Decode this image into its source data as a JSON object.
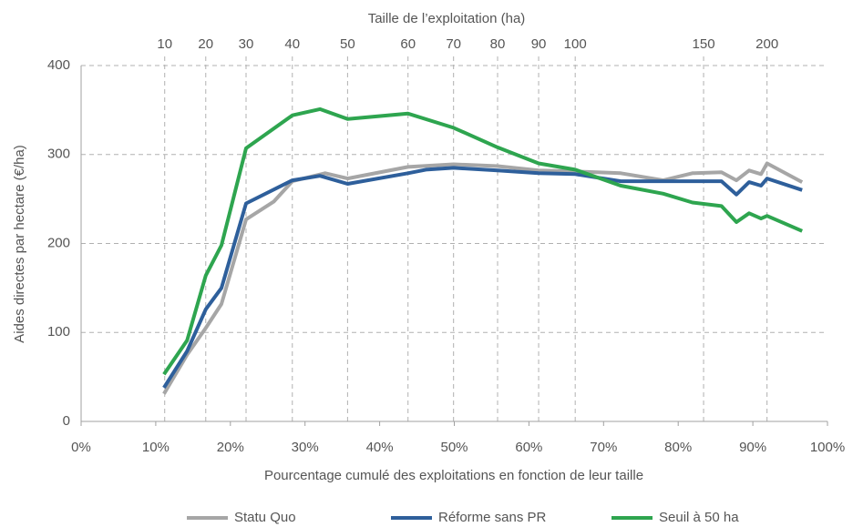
{
  "chart_data": {
    "type": "line",
    "xlabel": "Pourcentage cumulé des exploitations en fonction de leur taille",
    "ylabel": "Aides directes par hectare (€/ha)",
    "x2label": "Taille de l’exploitation (ha)",
    "xlim": [
      0,
      100
    ],
    "ylim": [
      0,
      400
    ],
    "xticks": [
      {
        "value": 0,
        "label": "0%"
      },
      {
        "value": 10,
        "label": "10%"
      },
      {
        "value": 20,
        "label": "20%"
      },
      {
        "value": 30,
        "label": "30%"
      },
      {
        "value": 40,
        "label": "40%"
      },
      {
        "value": 50,
        "label": "50%"
      },
      {
        "value": 60,
        "label": "60%"
      },
      {
        "value": 70,
        "label": "70%"
      },
      {
        "value": 80,
        "label": "80%"
      },
      {
        "value": 90,
        "label": "90%"
      },
      {
        "value": 100,
        "label": "100%"
      }
    ],
    "yticks": [
      0,
      100,
      200,
      300,
      400
    ],
    "x2ticks": [
      {
        "value": 11.2,
        "label": "10"
      },
      {
        "value": 16.7,
        "label": "20"
      },
      {
        "value": 22.1,
        "label": "30"
      },
      {
        "value": 28.3,
        "label": "40"
      },
      {
        "value": 35.7,
        "label": "50"
      },
      {
        "value": 43.8,
        "label": "60"
      },
      {
        "value": 49.9,
        "label": "70"
      },
      {
        "value": 55.8,
        "label": "80"
      },
      {
        "value": 61.3,
        "label": "90"
      },
      {
        "value": 66.2,
        "label": "100"
      },
      {
        "value": 83.4,
        "label": "150"
      },
      {
        "value": 91.9,
        "label": "200"
      }
    ],
    "grid": true,
    "legend": "bottom",
    "series": [
      {
        "name": "Statu Quo",
        "color": "#a6a6a6",
        "x": [
          11.1,
          14.2,
          16.7,
          18.8,
          22.1,
          25.8,
          28.3,
          32.7,
          35.7,
          43.8,
          49.9,
          55.8,
          61.3,
          66.2,
          72.3,
          78.0,
          81.9,
          85.8,
          87.8,
          89.5,
          91.1,
          91.9,
          96.6
        ],
        "values": [
          31,
          75,
          105,
          132,
          227,
          247,
          270,
          279,
          273,
          286,
          289,
          287,
          282,
          281,
          279,
          271,
          279,
          280,
          271,
          282,
          278,
          290,
          269
        ]
      },
      {
        "name": "Réforme sans PR",
        "color": "#2e5f9b",
        "x": [
          11.1,
          14.2,
          16.7,
          18.8,
          22.1,
          28.3,
          32.0,
          35.7,
          43.8,
          46.2,
          49.9,
          55.8,
          61.3,
          66.2,
          72.3,
          85.8,
          87.8,
          89.5,
          91.1,
          91.9,
          96.6
        ],
        "values": [
          38,
          79,
          126,
          150,
          245,
          271,
          276,
          267,
          279,
          283,
          285,
          282,
          279,
          278,
          270,
          270,
          255,
          269,
          265,
          273,
          260
        ]
      },
      {
        "name": "Seuil à 50 ha",
        "color": "#2ea54f",
        "x": [
          11.1,
          14.2,
          16.7,
          18.8,
          22.1,
          28.3,
          32.0,
          35.7,
          43.8,
          49.9,
          55.8,
          61.3,
          66.2,
          72.3,
          78.0,
          81.9,
          85.8,
          87.8,
          89.5,
          91.1,
          91.9,
          96.6
        ],
        "values": [
          53,
          91,
          164,
          198,
          307,
          344,
          351,
          340,
          346,
          330,
          308,
          290,
          283,
          265,
          256,
          246,
          242,
          224,
          234,
          228,
          231,
          214
        ]
      }
    ]
  }
}
